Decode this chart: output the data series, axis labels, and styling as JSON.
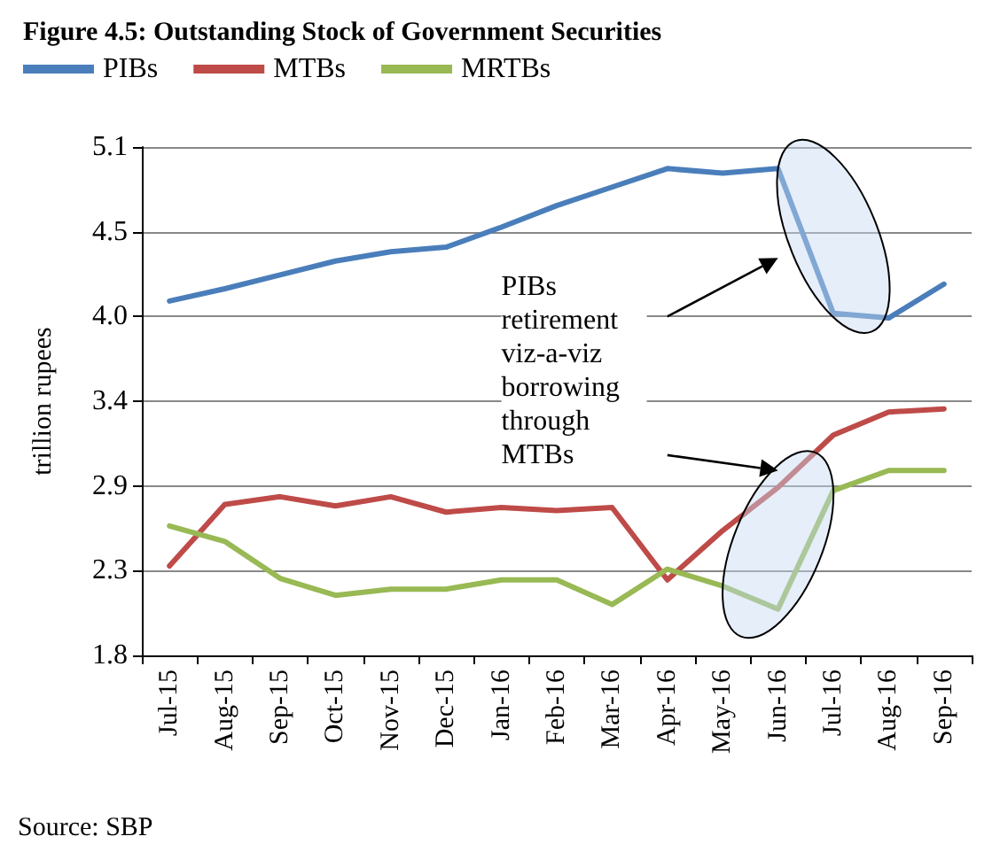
{
  "chart_data": {
    "type": "line",
    "title": "Figure 4.5: Outstanding Stock of Government Securities",
    "ylabel": "trillion rupees",
    "categories": [
      "Jul-15",
      "Aug-15",
      "Sep-15",
      "Oct-15",
      "Nov-15",
      "Dec-15",
      "Jan-16",
      "Feb-16",
      "Mar-16",
      "Apr-16",
      "May-16",
      "Jun-16",
      "Jul-16",
      "Aug-16",
      "Sep-16"
    ],
    "series": [
      {
        "name": "PIBs",
        "color": "#4a7ebb",
        "values": [
          4.1,
          4.18,
          4.27,
          4.36,
          4.42,
          4.45,
          4.58,
          4.72,
          4.84,
          4.96,
          4.93,
          4.96,
          4.02,
          3.99,
          4.21
        ]
      },
      {
        "name": "MTBs",
        "color": "#be4b48",
        "values": [
          2.38,
          2.78,
          2.83,
          2.77,
          2.83,
          2.73,
          2.76,
          2.74,
          2.76,
          2.29,
          2.61,
          2.89,
          3.23,
          3.38,
          3.4
        ]
      },
      {
        "name": "MRTBs",
        "color": "#98b954",
        "values": [
          2.64,
          2.54,
          2.3,
          2.19,
          2.23,
          2.23,
          2.29,
          2.29,
          2.13,
          2.36,
          2.25,
          2.1,
          2.87,
          3.0,
          3.0
        ]
      }
    ],
    "ylim": [
      1.8,
      5.1
    ],
    "yticks": [
      {
        "value": 1.8,
        "label": "1.8"
      },
      {
        "value": 2.35,
        "label": "2.3"
      },
      {
        "value": 2.9,
        "label": "2.9"
      },
      {
        "value": 3.45,
        "label": "3.4"
      },
      {
        "value": 4.0,
        "label": "4.0"
      },
      {
        "value": 4.55,
        "label": "4.5"
      },
      {
        "value": 5.1,
        "label": "5.1"
      }
    ],
    "grid": "y",
    "legend": "top",
    "marker": "none",
    "line_style": "solid",
    "annotations": [
      "PIBs retirement viz-a-viz borrowing through MTBs",
      "Source: SBP"
    ]
  }
}
